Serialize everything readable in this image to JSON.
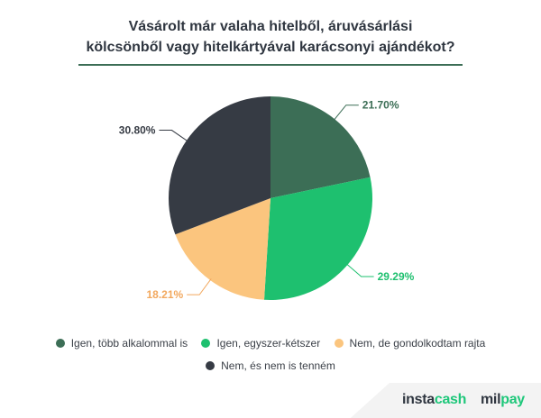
{
  "title": {
    "line1": "Vásárolt már valaha hitelből, áruvásárlási",
    "line2": "kölcsönből vagy hitelkártyával karácsonyi ajándékot?"
  },
  "chart_data": {
    "type": "pie",
    "start_angle_deg": 0,
    "direction": "clockwise",
    "slices": [
      {
        "name": "Igen, több alkalommal is",
        "value": 21.7,
        "label": "21.70%",
        "color": "#3c6e56",
        "label_color": "#3c6e56"
      },
      {
        "name": "Igen, egyszer-kétszer",
        "value": 29.29,
        "label": "29.29%",
        "color": "#1ec06f",
        "label_color": "#1ec06f"
      },
      {
        "name": "Nem, de gondolkodtam rajta",
        "value": 18.21,
        "label": "18.21%",
        "color": "#fbc57e",
        "label_color": "#f2a85e"
      },
      {
        "name": "Nem, és nem is tenném",
        "value": 30.8,
        "label": "30.80%",
        "color": "#363b44",
        "label_color": "#363b44"
      }
    ],
    "legend_position": "bottom"
  },
  "legend": {
    "row1": [
      {
        "label": "Igen, több alkalommal is",
        "color": "#3c6e56"
      },
      {
        "label": "Igen, egyszer-kétszer",
        "color": "#1ec06f"
      },
      {
        "label": "Nem, de gondolkodtam rajta",
        "color": "#fbc57e"
      }
    ],
    "row2": [
      {
        "label": "Nem, és nem is tenném",
        "color": "#363b44"
      }
    ]
  },
  "footer": {
    "brand1_main": "insta",
    "brand1_accent": "cash",
    "brand2_dark": "mil",
    "brand2_accent": "pay"
  }
}
